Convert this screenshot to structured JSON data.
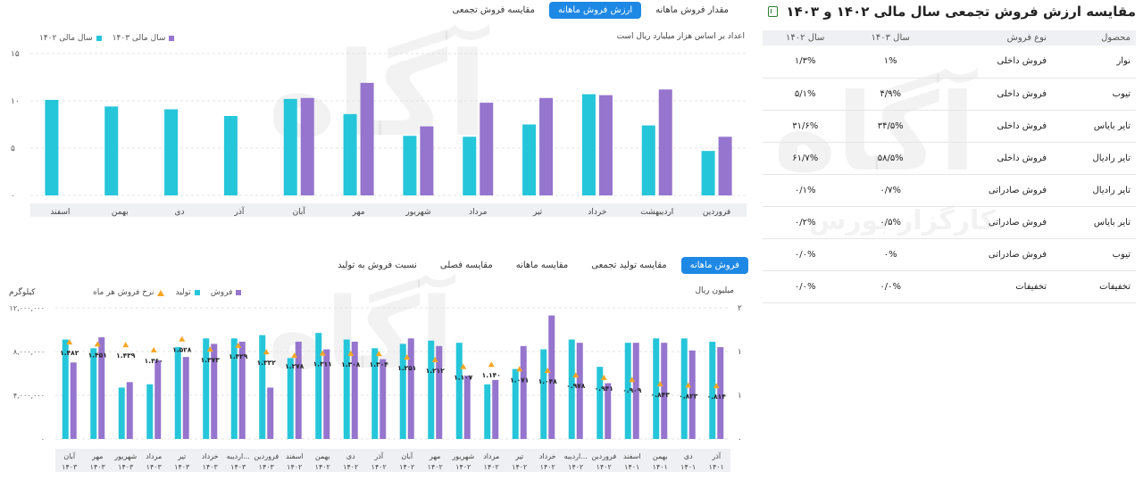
{
  "top_tabs": [
    "مقدار فروش ماهانه",
    "ارزش فروش ماهانه",
    "مقایسه فروش تجمعی"
  ],
  "top_legend": [
    {
      "label": "سال مالی ۱۴۰۳",
      "color": "#9575cd"
    },
    {
      "label": "سال مالی ۱۴۰۲",
      "color": "#26c6da"
    }
  ],
  "top_note": "اعداد بر اساس هزار میلیارد ریال است",
  "bottom_tabs": [
    "فروش ماهانه",
    "مقایسه تولید تجمعی",
    "مقایسه ماهانه",
    "مقایسه فصلی",
    "نسبت فروش به تولید"
  ],
  "bottom_legend": [
    {
      "label": "فروش",
      "color": "#9575cd"
    },
    {
      "label": "تولید",
      "color": "#26c6da"
    },
    {
      "label": "نرخ فروش هر ماه",
      "color": "#f5a623"
    }
  ],
  "bottom_left_unit": "کیلوگرم",
  "bottom_right_unit": "میلیون ریال",
  "colors": {
    "cyan": "#26c6da",
    "purple": "#9575cd",
    "orange": "#f5a623",
    "accent": "#1e88e5"
  },
  "watermark": "آگاه",
  "watermark_sub": "کارگزار بورس",
  "chart_data": [
    {
      "type": "bar",
      "categories": [
        "فروردین",
        "اردیبهشت",
        "خرداد",
        "تیر",
        "مرداد",
        "شهریور",
        "مهر",
        "آبان",
        "آذر",
        "دی",
        "بهمن",
        "اسفند"
      ],
      "series": [
        {
          "name": "سال مالی ۱۴۰۲",
          "values": [
            4.7,
            7.4,
            10.7,
            7.5,
            6.2,
            6.3,
            8.6,
            10.2,
            8.4,
            9.1,
            9.4,
            10.1
          ]
        },
        {
          "name": "سال مالی ۱۴۰۳",
          "values": [
            6.2,
            11.2,
            10.6,
            10.3,
            9.8,
            7.3,
            11.9,
            10.3,
            null,
            null,
            null,
            null
          ]
        }
      ],
      "ylim": [
        0,
        15
      ],
      "yticks": [
        "۰",
        "۵",
        "۱۰",
        "۱۵"
      ],
      "grid": true,
      "legend": "top-left"
    },
    {
      "type": "bar",
      "categories": [
        "آذر ۱۴۰۱",
        "دی ۱۴۰۱",
        "بهمن ۱۴۰۱",
        "اسفند ۱۴۰۱",
        "فروردین ۱۴۰۲",
        "اردیبه... ۱۴۰۲",
        "خرداد ۱۴۰۲",
        "تیر ۱۴۰۲",
        "مرداد ۱۴۰۲",
        "شهریور ۱۴۰۲",
        "مهر ۱۴۰۲",
        "آبان ۱۴۰۲",
        "آذر ۱۴۰۲",
        "دی ۱۴۰۲",
        "بهمن ۱۴۰۲",
        "اسفند ۱۴۰۲",
        "فروردین ۱۴۰۳",
        "اردیبه... ۱۴۰۳",
        "خرداد ۱۴۰۳",
        "تیر ۱۴۰۳",
        "مرداد ۱۴۰۳",
        "شهریور ۱۴۰۳",
        "مهر ۱۴۰۳",
        "آبان ۱۴۰۳"
      ],
      "series": [
        {
          "name": "تولید",
          "values": [
            8900000,
            9200000,
            9200000,
            8800000,
            6600000,
            9100000,
            8200000,
            6400000,
            5000000,
            8800000,
            9000000,
            8700000,
            8300000,
            9100000,
            9700000,
            7400000,
            9500000,
            9200000,
            9200000,
            8400000,
            5000000,
            4700000,
            8300000,
            9100000
          ]
        },
        {
          "name": "فروش",
          "values": [
            8400000,
            8100000,
            8800000,
            8800000,
            5100000,
            8800000,
            11300000,
            8500000,
            5400000,
            5800000,
            8500000,
            9200000,
            7300000,
            8900000,
            8200000,
            8900000,
            4700000,
            8900000,
            8700000,
            7500000,
            7200000,
            5200000,
            9300000,
            7000000
          ]
        },
        {
          "name": "نرخ فروش هر ماه",
          "values": [
            0.814,
            0.823,
            0.843,
            0.909,
            0.941,
            0.978,
            1.048,
            1.071,
            1.14,
            1.107,
            1.212,
            1.251,
            1.304,
            1.308,
            1.311,
            1.278,
            1.332,
            1.429,
            1.373,
            1.528,
            1.36,
            1.439,
            1.451,
            1.482
          ],
          "labels": [
            "۰.۸۱۴",
            "۰.۸۲۳",
            "۰.۸۴۳",
            "۰.۹۰۹",
            "۰.۹۴۱",
            "۰.۹۷۸",
            "۱.۰۴۸",
            "۱.۰۷۱",
            "۱.۱۴۰",
            "۱.۱۰۷",
            "۱.۲۱۲",
            "۱.۲۵۱",
            "۱.۳۰۴",
            "۱.۳۰۸",
            "۱.۳۱۱",
            "۱.۲۷۸",
            "۱.۳۳۲",
            "۱.۴۲۹",
            "۱.۳۷۳",
            "۱.۵۲۸",
            "۱.۳۶۰",
            "۱.۴۳۹",
            "۱.۴۵۱",
            "۱.۴۸۲"
          ]
        }
      ],
      "ylim_left": [
        0,
        12000000
      ],
      "yticks_left": [
        "۰",
        "۴,۰۰۰,۰۰۰",
        "۸,۰۰۰,۰۰۰",
        "۱۲,۰۰۰,۰۰۰"
      ],
      "ylim_right": [
        0,
        2
      ],
      "yticks_right": [
        "۰",
        "۱",
        "۱",
        "۲"
      ],
      "grid": true,
      "legend": "top-left"
    }
  ],
  "table": {
    "title": "مقایسه ارزش فروش تجمعی سال مالی ۱۴۰۲ و ۱۴۰۳",
    "headers": [
      "محصول",
      "نوع فروش",
      "سال ۱۴۰۳",
      "سال ۱۴۰۲"
    ],
    "rows": [
      [
        "نوار",
        "فروش داخلی",
        "۱%",
        "۱/۳%"
      ],
      [
        "تیوب",
        "فروش داخلی",
        "۴/۹%",
        "۵/۱%"
      ],
      [
        "تایر بایاس",
        "فروش داخلی",
        "۳۴/۵%",
        "۳۱/۶%"
      ],
      [
        "تایر رادیال",
        "فروش داخلی",
        "۵۸/۵%",
        "۶۱/۷%"
      ],
      [
        "تایر رادیال",
        "فروش صادراتی",
        "۰/۷%",
        "۰/۱%"
      ],
      [
        "تایر بایاس",
        "فروش صادراتی",
        "۰/۵%",
        "۰/۲%"
      ],
      [
        "تیوب",
        "فروش صادراتی",
        "۰%",
        "۰/۰%"
      ],
      [
        "تخفیفات",
        "تخفیفات",
        "۰/۰%",
        "۰/۰%"
      ]
    ]
  }
}
